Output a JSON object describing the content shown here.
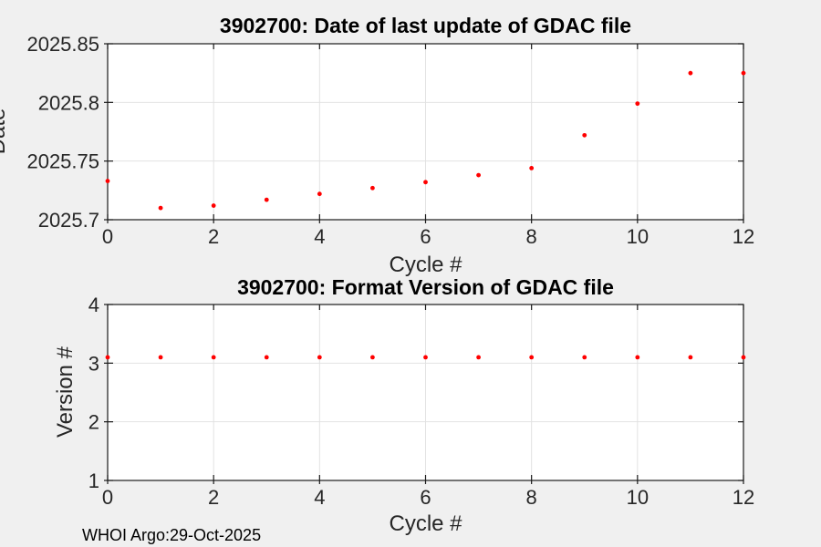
{
  "figure": {
    "background_color": "#f0f0f0",
    "footer": "WHOI Argo:29-Oct-2025"
  },
  "colors": {
    "marker": "#ff0000",
    "axis": "#1a1a1a",
    "grid": "#e2e2e2",
    "text": "#262626",
    "plot_background": "#ffffff"
  },
  "chart_data": [
    {
      "type": "scatter",
      "title": "3902700: Date of last update of GDAC file",
      "xlabel": "Cycle #",
      "ylabel": "Date",
      "x": [
        0,
        1,
        2,
        3,
        4,
        5,
        6,
        7,
        8,
        9,
        10,
        11,
        12
      ],
      "y": [
        2025.733,
        2025.71,
        2025.712,
        2025.717,
        2025.722,
        2025.727,
        2025.732,
        2025.738,
        2025.744,
        2025.772,
        2025.799,
        2025.825,
        2025.825
      ],
      "xlim": [
        0,
        12
      ],
      "ylim": [
        2025.7,
        2025.85
      ],
      "xticks": [
        0,
        2,
        4,
        6,
        8,
        10,
        12
      ],
      "xtick_labels": [
        "0",
        "2",
        "4",
        "6",
        "8",
        "10",
        "12"
      ],
      "yticks": [
        2025.7,
        2025.75,
        2025.8,
        2025.85
      ],
      "ytick_labels": [
        "2025.7",
        "2025.75",
        "2025.8",
        "2025.85"
      ],
      "grid": true,
      "legend": "none",
      "marker": "dot",
      "marker_color": "#ff0000"
    },
    {
      "type": "scatter",
      "title": "3902700: Format Version of GDAC file",
      "xlabel": "Cycle #",
      "ylabel": "Version #",
      "x": [
        0,
        1,
        2,
        3,
        4,
        5,
        6,
        7,
        8,
        9,
        10,
        11,
        12
      ],
      "y": [
        3.1,
        3.1,
        3.1,
        3.1,
        3.1,
        3.1,
        3.1,
        3.1,
        3.1,
        3.1,
        3.1,
        3.1,
        3.1
      ],
      "xlim": [
        0,
        12
      ],
      "ylim": [
        1,
        4
      ],
      "xticks": [
        0,
        2,
        4,
        6,
        8,
        10,
        12
      ],
      "xtick_labels": [
        "0",
        "2",
        "4",
        "6",
        "8",
        "10",
        "12"
      ],
      "yticks": [
        1,
        2,
        3,
        4
      ],
      "ytick_labels": [
        "1",
        "2",
        "3",
        "4"
      ],
      "grid": true,
      "legend": "none",
      "marker": "dot",
      "marker_color": "#ff0000"
    }
  ]
}
